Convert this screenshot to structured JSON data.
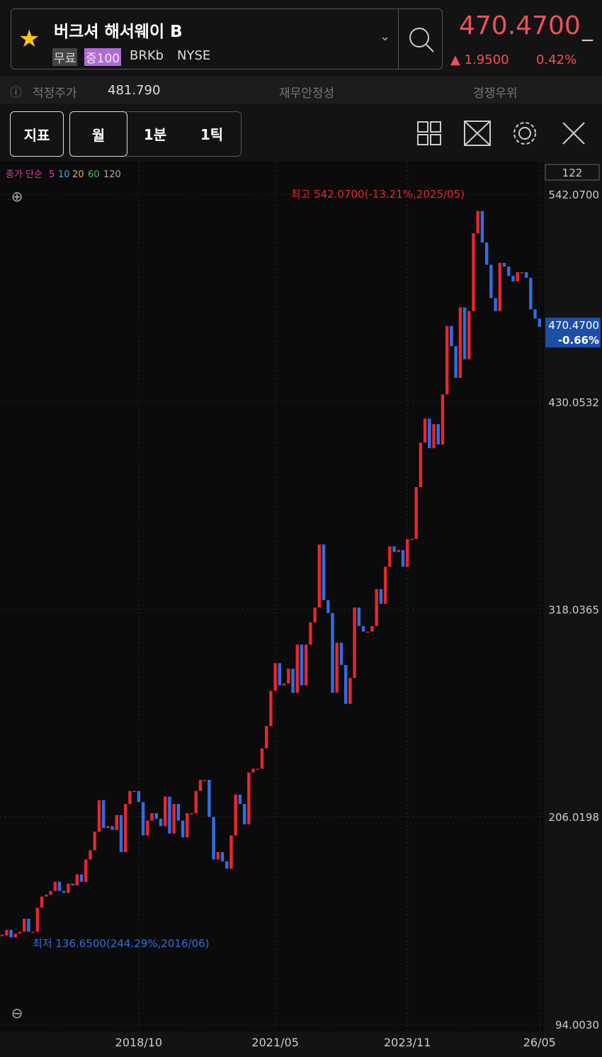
{
  "header": {
    "name": "버크셔 해서웨이 B",
    "badges": [
      "무료",
      "증100"
    ],
    "ticker": "BRKb",
    "exchange": "NYSE",
    "price": "470.4700",
    "change": "1.9500",
    "change_pct": "0.42%"
  },
  "info": {
    "fair_label": "적정주가",
    "fair_value": "481.790",
    "stability": "재무안정성",
    "advantage": "경쟁우위"
  },
  "toolbar": {
    "buttons": [
      "지표",
      "월",
      "1분",
      "1틱"
    ]
  },
  "chart_data": {
    "type": "candlestick",
    "legend": [
      "종가 단순",
      "5",
      "10",
      "20",
      "60",
      "120"
    ],
    "count_label": "122",
    "values": [
      142,
      145,
      141,
      143,
      144,
      151,
      144,
      144,
      157,
      163,
      164,
      166,
      171,
      166,
      165,
      170,
      169,
      175,
      171,
      183,
      188,
      198,
      215,
      200,
      201,
      199,
      207,
      187,
      213,
      220,
      220,
      214,
      196,
      204,
      208,
      205,
      201,
      217,
      197,
      213,
      204,
      195,
      208,
      208,
      220,
      226,
      226,
      206,
      183,
      187,
      182,
      178,
      196,
      218,
      213,
      202,
      230,
      232,
      232,
      243,
      255,
      274,
      289,
      277,
      278,
      286,
      273,
      299,
      277,
      299,
      311,
      319,
      353,
      323,
      316,
      273,
      300,
      288,
      267,
      281,
      319,
      309,
      306,
      306,
      309,
      329,
      321,
      341,
      352,
      349,
      350,
      341,
      356,
      356,
      384,
      408,
      421,
      405,
      418,
      407,
      434,
      471,
      460,
      443,
      481,
      453,
      479,
      521,
      533,
      516,
      504,
      486,
      479,
      505,
      503,
      498,
      495,
      500,
      500,
      497,
      480,
      475,
      470.47
    ],
    "up_color": "#e8262f",
    "down_color": "#2f6fe0",
    "xlim": [
      -0.5,
      123
    ],
    "xticks": [
      {
        "value": 31,
        "label": "2018/10"
      },
      {
        "value": 62,
        "label": "2021/05"
      },
      {
        "value": 92,
        "label": "2023/11"
      },
      {
        "value": 122,
        "label": "26/05"
      }
    ],
    "ylim": [
      94.003,
      542.07
    ],
    "yticks": [
      {
        "value": 94.003,
        "label": "94.0030"
      },
      {
        "value": 206.0198,
        "label": "206.0198"
      },
      {
        "value": 318.0365,
        "label": "318.0365"
      },
      {
        "value": 430.0532,
        "label": "430.0532"
      },
      {
        "value": 542.07,
        "label": "542.0700"
      }
    ],
    "grid": true,
    "annotations": {
      "high": "최고 542.0700(-13.21%,2025/05)",
      "low": "최저 136.6500(244.29%,2016/06)",
      "last_price": {
        "value": 470.47,
        "label": "470.4700"
      },
      "last_change": "-0.66%"
    }
  }
}
